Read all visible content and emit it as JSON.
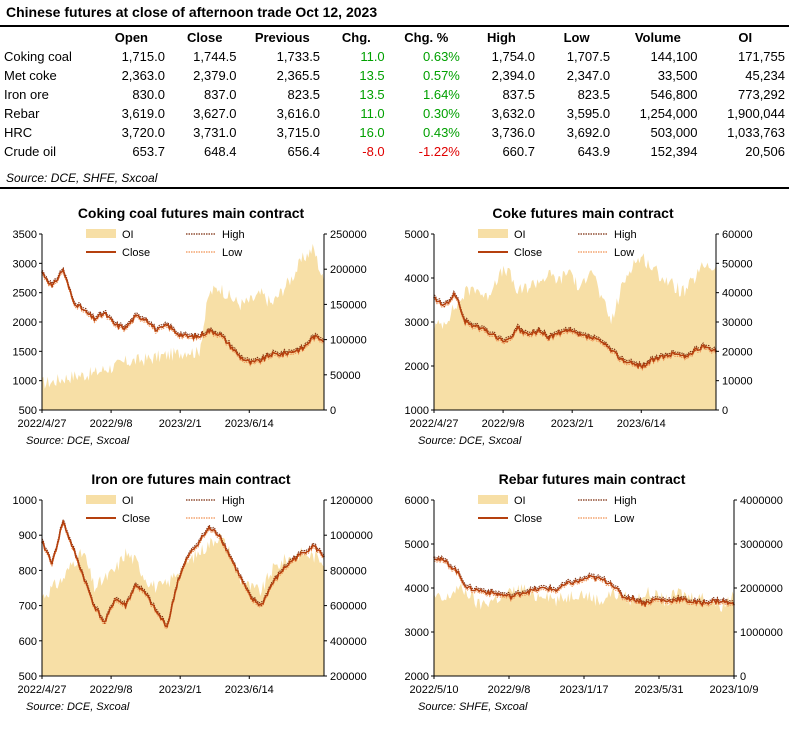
{
  "table": {
    "title": "Chinese futures at close of afternoon trade Oct 12, 2023",
    "columns": [
      "",
      "Open",
      "Close",
      "Previous",
      "Chg.",
      "Chg. %",
      "High",
      "Low",
      "Volume",
      "OI"
    ],
    "rows": [
      {
        "name": "Coking coal",
        "open": "1,715.0",
        "close": "1,744.5",
        "previous": "1,733.5",
        "chg": "11.0",
        "chgpct": "0.63%",
        "high": "1,754.0",
        "low": "1,707.5",
        "volume": "144,100",
        "oi": "171,755",
        "up": true
      },
      {
        "name": "Met coke",
        "open": "2,363.0",
        "close": "2,379.0",
        "previous": "2,365.5",
        "chg": "13.5",
        "chgpct": "0.57%",
        "high": "2,394.0",
        "low": "2,347.0",
        "volume": "33,500",
        "oi": "45,234",
        "up": true
      },
      {
        "name": "Iron ore",
        "open": "830.0",
        "close": "837.0",
        "previous": "823.5",
        "chg": "13.5",
        "chgpct": "1.64%",
        "high": "837.5",
        "low": "823.5",
        "volume": "546,800",
        "oi": "773,292",
        "up": true
      },
      {
        "name": "Rebar",
        "open": "3,619.0",
        "close": "3,627.0",
        "previous": "3,616.0",
        "chg": "11.0",
        "chgpct": "0.30%",
        "high": "3,632.0",
        "low": "3,595.0",
        "volume": "1,254,000",
        "oi": "1,900,044",
        "up": true
      },
      {
        "name": "HRC",
        "open": "3,720.0",
        "close": "3,731.0",
        "previous": "3,715.0",
        "chg": "16.0",
        "chgpct": "0.43%",
        "high": "3,736.0",
        "low": "3,692.0",
        "volume": "503,000",
        "oi": "1,033,763",
        "up": true
      },
      {
        "name": "Crude oil",
        "open": "653.7",
        "close": "648.4",
        "previous": "656.4",
        "chg": "-8.0",
        "chgpct": "-1.22%",
        "high": "660.7",
        "low": "643.9",
        "volume": "152,394",
        "oi": "20,506",
        "up": false
      }
    ],
    "source": "Source: DCE, SHFE, Sxcoal"
  },
  "colors": {
    "up": "#00a000",
    "down": "#e00000",
    "oi_fill": "#f7dfa6",
    "close": "#b5400e",
    "high": "#7a2a0a",
    "low": "#f09050"
  },
  "chart_data": [
    {
      "type": "line",
      "title": "Coking coal futures main contract",
      "source": "Source: DCE, Sxcoal",
      "x_ticks": [
        "2022/4/27",
        "2022/9/8",
        "2023/2/1",
        "2023/6/14"
      ],
      "y_left": {
        "ticks": [
          "500",
          "1000",
          "1500",
          "2000",
          "2500",
          "3000",
          "3500"
        ],
        "range": [
          500,
          3500
        ]
      },
      "y_right": {
        "ticks": [
          "0",
          "50000",
          "100000",
          "150000",
          "200000",
          "250000"
        ],
        "range": [
          0,
          250000
        ]
      },
      "legend": [
        "OI",
        "High",
        "Close",
        "Low"
      ],
      "series": [
        {
          "name": "Close",
          "axis": "left",
          "values": [
            2850,
            2600,
            2900,
            2350,
            2200,
            2050,
            2150,
            1950,
            1900,
            2100,
            2050,
            1850,
            1950,
            1800,
            1750,
            1750,
            1850,
            1800,
            1600,
            1400,
            1300,
            1350,
            1450,
            1450,
            1500,
            1550,
            1750,
            1700
          ]
        },
        {
          "name": "OI",
          "axis": "right",
          "values": [
            38000,
            40000,
            45000,
            48000,
            50000,
            52000,
            58000,
            62000,
            68000,
            70000,
            72000,
            75000,
            78000,
            80000,
            85000,
            80000,
            165000,
            175000,
            160000,
            150000,
            155000,
            165000,
            150000,
            170000,
            190000,
            215000,
            230000,
            180000
          ]
        }
      ]
    },
    {
      "type": "line",
      "title": "Coke futures main contract",
      "source": "Source: DCE, Sxcoal",
      "x_ticks": [
        "2022/4/27",
        "2022/9/8",
        "2023/2/1",
        "2023/6/14"
      ],
      "y_left": {
        "ticks": [
          "1000",
          "2000",
          "3000",
          "4000",
          "5000"
        ],
        "range": [
          1000,
          5000
        ]
      },
      "y_right": {
        "ticks": [
          "0",
          "10000",
          "20000",
          "30000",
          "40000",
          "50000",
          "60000"
        ],
        "range": [
          0,
          60000
        ]
      },
      "legend": [
        "OI",
        "High",
        "Close",
        "Low"
      ],
      "series": [
        {
          "name": "Close",
          "axis": "left",
          "values": [
            3550,
            3350,
            3650,
            3000,
            2900,
            2800,
            2650,
            2550,
            2850,
            2700,
            2800,
            2650,
            2750,
            2800,
            2700,
            2650,
            2550,
            2350,
            2150,
            2050,
            2000,
            2150,
            2200,
            2300,
            2200,
            2350,
            2450,
            2350
          ]
        },
        {
          "name": "OI",
          "axis": "right",
          "values": [
            28000,
            30000,
            35000,
            40000,
            42000,
            38000,
            45000,
            48000,
            40000,
            42000,
            44000,
            46000,
            44000,
            48000,
            40000,
            50000,
            38000,
            30000,
            42000,
            50000,
            52000,
            48000,
            45000,
            42000,
            40000,
            45000,
            50000,
            48000
          ]
        }
      ]
    },
    {
      "type": "line",
      "title": "Iron ore futures main contract",
      "source": "Source: DCE, Sxcoal",
      "x_ticks": [
        "2022/4/27",
        "2022/9/8",
        "2023/2/1",
        "2023/6/14"
      ],
      "y_left": {
        "ticks": [
          "500",
          "600",
          "700",
          "800",
          "900",
          "1000"
        ],
        "range": [
          500,
          1000
        ]
      },
      "y_right": {
        "ticks": [
          "200000",
          "400000",
          "600000",
          "800000",
          "1000000",
          "1200000"
        ],
        "range": [
          200000,
          1200000
        ]
      },
      "legend": [
        "OI",
        "High",
        "Close",
        "Low"
      ],
      "series": [
        {
          "name": "Close",
          "axis": "left",
          "values": [
            880,
            820,
            940,
            860,
            780,
            700,
            650,
            720,
            700,
            760,
            730,
            680,
            640,
            770,
            840,
            880,
            920,
            900,
            840,
            780,
            720,
            700,
            760,
            800,
            830,
            850,
            870,
            840
          ]
        },
        {
          "name": "OI",
          "axis": "right",
          "values": [
            650000,
            700000,
            750000,
            850000,
            900000,
            700000,
            750000,
            800000,
            900000,
            850000,
            750000,
            700000,
            720000,
            800000,
            850000,
            900000,
            950000,
            1000000,
            900000,
            750000,
            700000,
            680000,
            800000,
            850000,
            880000,
            900000,
            880000,
            860000
          ]
        }
      ]
    },
    {
      "type": "line",
      "title": "Rebar futures main contract",
      "source": "Source: SHFE, Sxcoal",
      "x_ticks": [
        "2022/5/10",
        "2022/9/8",
        "2023/1/17",
        "2023/5/31",
        "2023/10/9"
      ],
      "y_left": {
        "ticks": [
          "2000",
          "3000",
          "4000",
          "5000",
          "6000"
        ],
        "range": [
          2000,
          6000
        ]
      },
      "y_right": {
        "ticks": [
          "0",
          "1000000",
          "2000000",
          "3000000",
          "4000000"
        ],
        "range": [
          0,
          4000000
        ]
      },
      "legend": [
        "OI",
        "High",
        "Close",
        "Low"
      ],
      "series": [
        {
          "name": "Close",
          "axis": "left",
          "values": [
            4700,
            4600,
            4400,
            4000,
            3950,
            3900,
            3850,
            3800,
            3900,
            3950,
            4000,
            3950,
            4100,
            4150,
            4250,
            4200,
            4100,
            3800,
            3750,
            3650,
            3750,
            3700,
            3750,
            3700,
            3650,
            3700,
            3700,
            3620
          ]
        },
        {
          "name": "OI",
          "axis": "right",
          "values": [
            1800000,
            1700000,
            2000000,
            1900000,
            1600000,
            1700000,
            1800000,
            1900000,
            2000000,
            1800000,
            1900000,
            1700000,
            1800000,
            1900000,
            1800000,
            1700000,
            1900000,
            1800000,
            1700000,
            1900000,
            1800000,
            1700000,
            1900000,
            1800000,
            1800000,
            1700000,
            1600000,
            1900000
          ]
        }
      ]
    }
  ]
}
